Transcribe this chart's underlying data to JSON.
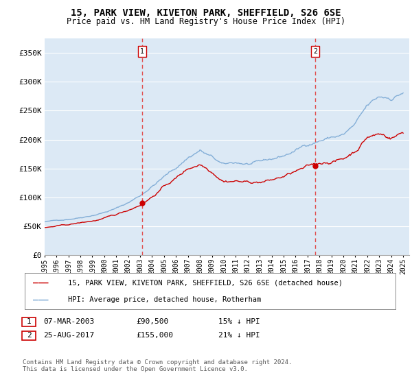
{
  "title": "15, PARK VIEW, KIVETON PARK, SHEFFIELD, S26 6SE",
  "subtitle": "Price paid vs. HM Land Registry's House Price Index (HPI)",
  "ylabel_ticks": [
    0,
    50000,
    100000,
    150000,
    200000,
    250000,
    300000,
    350000
  ],
  "ylabel_labels": [
    "£0",
    "£50K",
    "£100K",
    "£150K",
    "£200K",
    "£250K",
    "£300K",
    "£350K"
  ],
  "xlim": [
    1995.0,
    2025.5
  ],
  "ylim": [
    0,
    375000
  ],
  "purchase1": {
    "year": 2003.18,
    "price": 90500,
    "label": "1",
    "date": "07-MAR-2003",
    "amount": "£90,500",
    "pct": "15% ↓ HPI"
  },
  "purchase2": {
    "year": 2017.64,
    "price": 155000,
    "label": "2",
    "date": "25-AUG-2017",
    "amount": "£155,000",
    "pct": "21% ↓ HPI"
  },
  "legend_property": "15, PARK VIEW, KIVETON PARK, SHEFFIELD, S26 6SE (detached house)",
  "legend_hpi": "HPI: Average price, detached house, Rotherham",
  "footnote": "Contains HM Land Registry data © Crown copyright and database right 2024.\nThis data is licensed under the Open Government Licence v3.0.",
  "property_color": "#cc0000",
  "hpi_color": "#7aa8d4",
  "bg_color": "#dce9f5",
  "grid_color": "#ffffff",
  "vline_color": "#e05050",
  "marker_box_color": "#cc0000",
  "xtick_years": [
    1995,
    1996,
    1997,
    1998,
    1999,
    2000,
    2001,
    2002,
    2003,
    2004,
    2005,
    2006,
    2007,
    2008,
    2009,
    2010,
    2011,
    2012,
    2013,
    2014,
    2015,
    2016,
    2017,
    2018,
    2019,
    2020,
    2021,
    2022,
    2023,
    2024,
    2025
  ]
}
